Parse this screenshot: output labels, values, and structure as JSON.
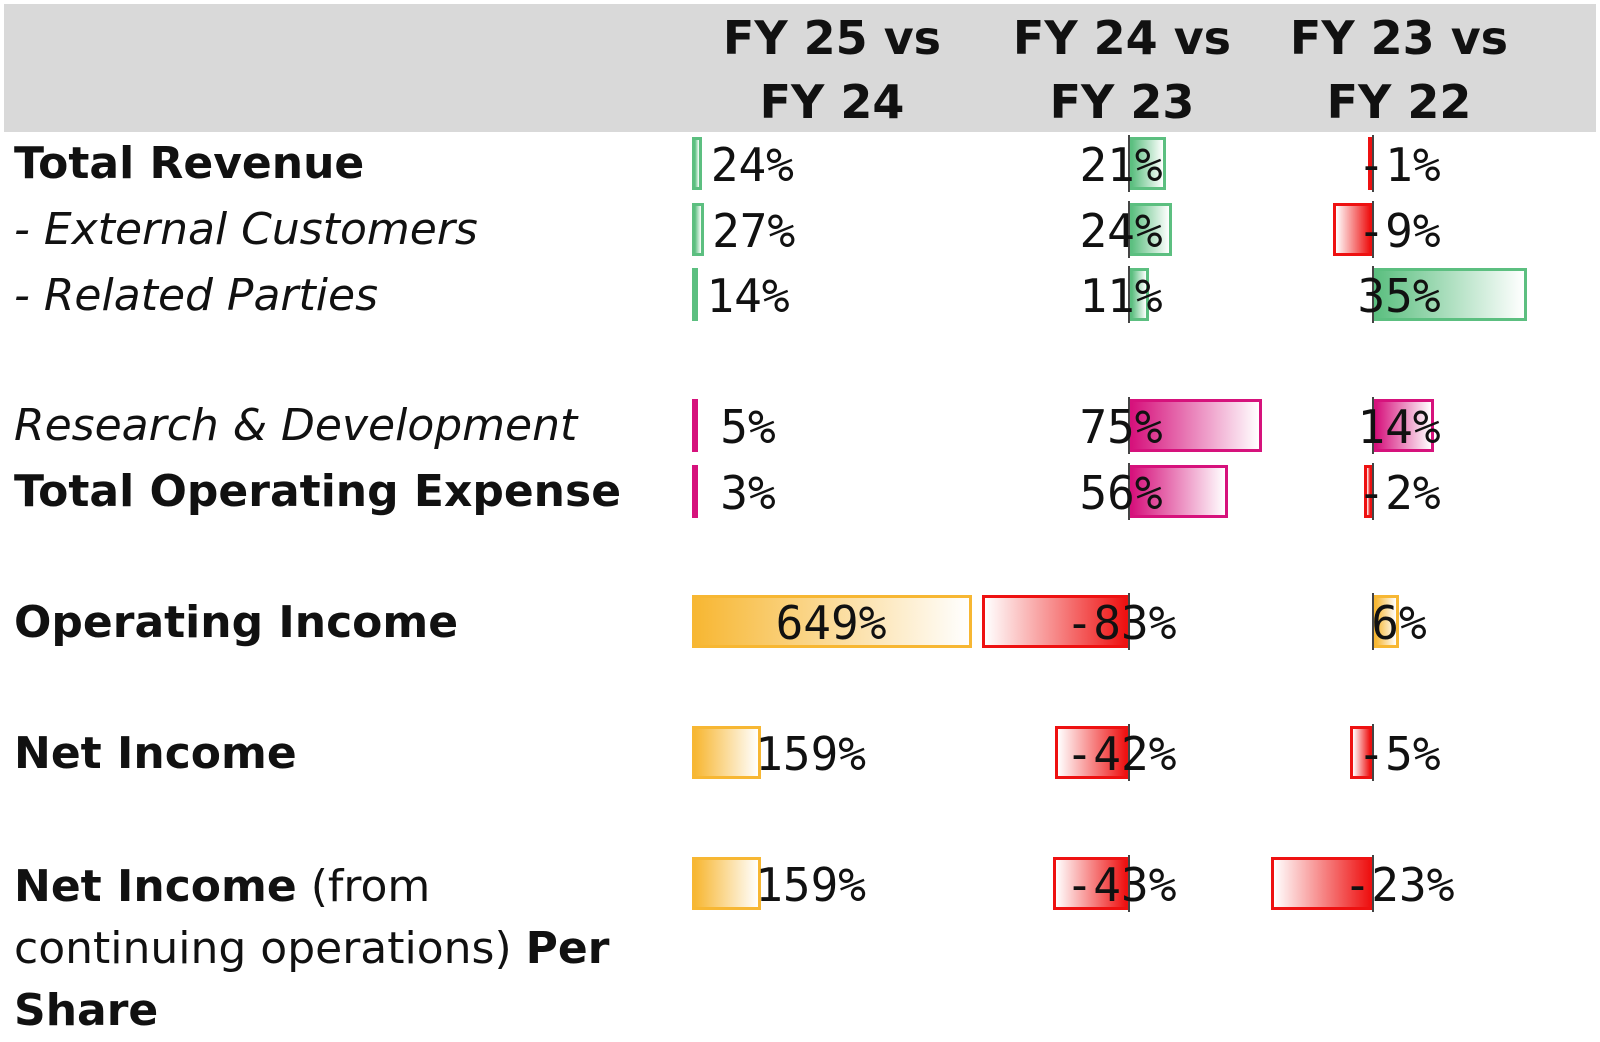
{
  "chart_data": {
    "type": "bar",
    "columns": [
      {
        "line1": "FY 25 vs",
        "line2": "FY 24"
      },
      {
        "line1": "FY 24 vs",
        "line2": "FY 23"
      },
      {
        "line1": "FY 23 vs",
        "line2": "FY 22"
      }
    ],
    "rows": [
      {
        "label_parts": [
          {
            "text": "Total Revenue",
            "bold": true
          }
        ],
        "italic": false,
        "color_group": "green",
        "values": [
          24,
          21,
          -1
        ],
        "labels": [
          "24%",
          "21%",
          "-1%"
        ]
      },
      {
        "label_parts": [
          {
            "text": "- External Customers",
            "bold": false
          }
        ],
        "italic": true,
        "color_group": "green",
        "values": [
          27,
          24,
          -9
        ],
        "labels": [
          "27%",
          "24%",
          "-9%"
        ]
      },
      {
        "label_parts": [
          {
            "text": "- Related Parties",
            "bold": false
          }
        ],
        "italic": true,
        "color_group": "green",
        "values": [
          14,
          11,
          35
        ],
        "labels": [
          "14%",
          "11%",
          "35%"
        ]
      },
      {
        "label_parts": [
          {
            "text": "Research & Development",
            "bold": false
          }
        ],
        "italic": true,
        "color_group": "magenta",
        "values": [
          5,
          75,
          14
        ],
        "labels": [
          "5%",
          "75%",
          "14%"
        ]
      },
      {
        "label_parts": [
          {
            "text": "Total Operating Expense",
            "bold": true
          }
        ],
        "italic": false,
        "color_group": "magenta",
        "values": [
          3,
          56,
          -2
        ],
        "labels": [
          "3%",
          "56%",
          "-2%"
        ]
      },
      {
        "label_parts": [
          {
            "text": "Operating Income",
            "bold": true
          }
        ],
        "italic": false,
        "color_group": "orange",
        "values": [
          649,
          -83,
          6
        ],
        "labels": [
          "649%",
          "-83%",
          "6%"
        ]
      },
      {
        "label_parts": [
          {
            "text": "Net Income",
            "bold": true
          }
        ],
        "italic": false,
        "color_group": "orange",
        "values": [
          159,
          -42,
          -5
        ],
        "labels": [
          "159%",
          "-42%",
          "-5%"
        ]
      },
      {
        "label_parts": [
          {
            "text": "Net Income",
            "bold": true
          },
          {
            "text": " (from continuing operations) ",
            "bold": false
          },
          {
            "text": "Per Share",
            "bold": true
          }
        ],
        "italic": false,
        "color_group": "orange",
        "values": [
          159,
          -43,
          -23
        ],
        "labels": [
          "159%",
          "-43%",
          "-23%"
        ]
      }
    ]
  },
  "colors": {
    "header_bg": "#d9d9d9",
    "green": "#5cbf80",
    "magenta": "#d6127c",
    "orange": "#f7b733",
    "negative": "#ee1111"
  }
}
